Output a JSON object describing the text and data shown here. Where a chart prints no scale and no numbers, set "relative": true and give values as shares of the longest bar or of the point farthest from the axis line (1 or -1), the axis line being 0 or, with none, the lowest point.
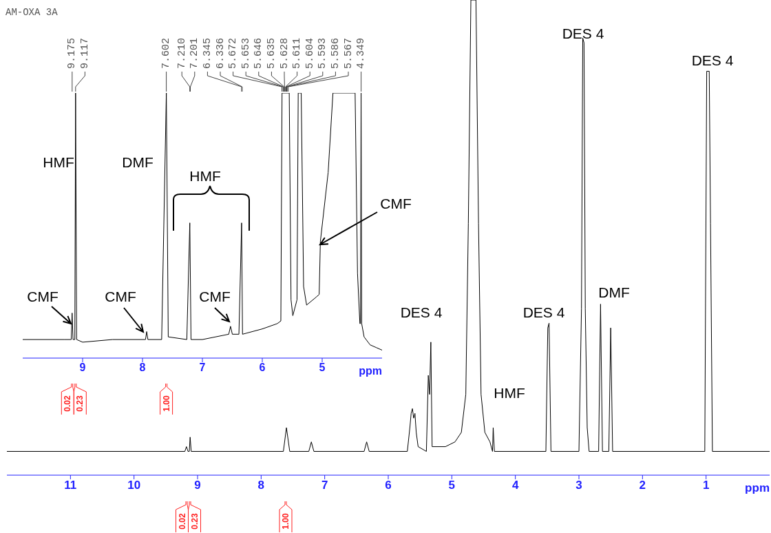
{
  "chart_data": [
    {
      "type": "line",
      "relative": true,
      "color": "#000000",
      "xlabel": "ppm",
      "xlim": [
        12,
        0
      ],
      "xticks": [
        11,
        10,
        9,
        8,
        7,
        6,
        5,
        4,
        3,
        2,
        1
      ],
      "x": [
        12.0,
        9.2,
        9.175,
        9.15,
        9.13,
        9.117,
        9.1,
        7.65,
        7.602,
        7.55,
        7.25,
        7.21,
        7.17,
        6.38,
        6.34,
        6.3,
        5.7,
        5.66,
        5.64,
        5.62,
        5.6,
        5.58,
        5.56,
        5.53,
        5.4,
        5.37,
        5.35,
        5.33,
        5.31,
        5.1,
        4.95,
        4.85,
        4.78,
        4.74,
        4.7,
        4.62,
        4.58,
        4.54,
        4.48,
        4.4,
        4.36,
        4.349,
        4.33,
        3.52,
        3.49,
        3.47,
        3.44,
        3.0,
        2.96,
        2.94,
        2.92,
        2.9,
        2.87,
        2.84,
        2.69,
        2.66,
        2.63,
        2.53,
        2.5,
        2.47,
        1.02,
        0.99,
        0.95,
        0.93,
        0.9,
        0.0
      ],
      "values": [
        0.05,
        0.05,
        0.06,
        0.05,
        0.05,
        0.08,
        0.05,
        0.05,
        0.1,
        0.05,
        0.05,
        0.07,
        0.05,
        0.05,
        0.07,
        0.05,
        0.05,
        0.1,
        0.13,
        0.14,
        0.12,
        0.13,
        0.09,
        0.06,
        0.05,
        0.21,
        0.17,
        0.28,
        0.06,
        0.06,
        0.07,
        0.09,
        0.17,
        0.53,
        1,
        1,
        0.53,
        0.17,
        0.09,
        0.07,
        0.05,
        0.1,
        0.05,
        0.05,
        0.31,
        0.32,
        0.05,
        0.05,
        0.35,
        0.92,
        0.91,
        0.35,
        0.1,
        0.05,
        0.05,
        0.36,
        0.05,
        0.05,
        0.31,
        0.05,
        0.05,
        0.85,
        0.85,
        0.53,
        0.05,
        0.05
      ],
      "annotations": [
        "0.02",
        "0.23",
        "1.00",
        "DES 4",
        "HMF",
        "DES 4",
        "DES 4",
        "DMF",
        "DES 4"
      ]
    },
    {
      "type": "line",
      "relative": true,
      "title": "AM-OXA 3A",
      "color": "#000000",
      "xlabel": "ppm",
      "xlim": [
        10,
        4
      ],
      "xticks": [
        9,
        8,
        7,
        6,
        5
      ],
      "x": [
        10,
        9.3,
        9.19,
        9.175,
        9.16,
        9.13,
        9.117,
        9.1,
        9.0,
        8.5,
        7.95,
        7.93,
        7.91,
        7.68,
        7.602,
        7.57,
        7.26,
        7.21,
        7.19,
        7.0,
        6.56,
        6.53,
        6.5,
        6.39,
        6.345,
        6.33,
        6.0,
        5.75,
        5.69,
        5.67,
        5.55,
        5.52,
        5.49,
        5.42,
        5.4,
        5.35,
        5.31,
        5.26,
        5.1,
        5.05,
        5.03,
        4.9,
        4.82,
        4.45,
        4.41,
        4.37,
        4.36,
        4.35,
        4.34,
        4.3,
        4.2,
        4.1,
        4.0
      ],
      "values": [
        0.07,
        0.07,
        0.07,
        0.17,
        0.07,
        0.07,
        1,
        0.07,
        0.06,
        0.07,
        0.07,
        0.1,
        0.07,
        0.07,
        1,
        0.08,
        0.07,
        0.51,
        0.07,
        0.07,
        0.09,
        0.12,
        0.09,
        0.09,
        0.51,
        0.09,
        0.11,
        0.13,
        0.14,
        1,
        1,
        0.22,
        0.16,
        0.22,
        1,
        1,
        0.27,
        0.2,
        0.23,
        0.24,
        0.44,
        0.7,
        1,
        1,
        0.32,
        0.13,
        0.13,
        1,
        0.13,
        0.08,
        0.05,
        0.04,
        0.03
      ],
      "annotations": [
        "9.175",
        "9.117",
        "7.602",
        "7.210",
        "7.201",
        "6.345",
        "6.336",
        "5.672",
        "5.653",
        "5.646",
        "5.635",
        "5.628",
        "5.611",
        "5.604",
        "5.593",
        "5.586",
        "5.567",
        "4.349",
        "0.02",
        "0.23",
        "1.00",
        "HMF",
        "DMF",
        "HMF",
        "CMF",
        "CMF",
        "CMF",
        "CMF"
      ]
    }
  ]
}
